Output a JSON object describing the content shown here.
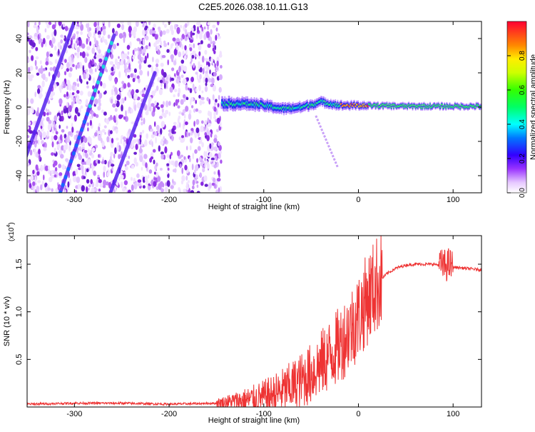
{
  "chart_data": [
    {
      "type": "heatmap",
      "title": "C2E5.2026.038.10.11.G13",
      "xlabel": "Height of straight line (km)",
      "ylabel": "Frequency (Hz)",
      "xlim": [
        -350,
        130
      ],
      "ylim": [
        -50,
        50
      ],
      "x_ticks": [
        -300,
        -200,
        -100,
        0,
        100
      ],
      "x_tick_labels": [
        "-300",
        "-200",
        "-100",
        "0",
        "100"
      ],
      "y_ticks": [
        -40,
        -20,
        0,
        20,
        40
      ],
      "y_tick_labels": [
        "-40",
        "-20",
        "0",
        "20",
        "40"
      ],
      "colorbar": {
        "label": "Normalized spectral amplitude",
        "range": [
          0,
          1
        ],
        "ticks": [
          0.0,
          0.2,
          0.4,
          0.6,
          0.8
        ],
        "tick_labels": [
          "0.0",
          "0.2",
          "0.4",
          "0.6",
          "0.8"
        ]
      },
      "features": {
        "noise_region_x": [
          -350,
          -145
        ],
        "main_line": [
          [
            -145,
            2
          ],
          [
            -120,
            2
          ],
          [
            -100,
            1
          ],
          [
            -80,
            -1
          ],
          [
            -60,
            0
          ],
          [
            -40,
            3
          ],
          [
            -20,
            1
          ],
          [
            0,
            1
          ],
          [
            50,
            0.5
          ],
          [
            100,
            0.5
          ],
          [
            130,
            0.5
          ]
        ],
        "diagonal_streaks": [
          {
            "from": [
              -315,
              -50
            ],
            "to": [
              -258,
              42
            ]
          },
          {
            "from": [
              -365,
              -50
            ],
            "to": [
              -300,
              50
            ]
          },
          {
            "from": [
              -262,
              -50
            ],
            "to": [
              -215,
              20
            ]
          }
        ],
        "faint_branch": {
          "from": [
            -45,
            -5
          ],
          "to": [
            -22,
            -35
          ]
        }
      }
    },
    {
      "type": "line",
      "xlabel": "Height of straight line (km)",
      "ylabel": "SNR (10 * v/v)",
      "multiplier_label": "(x10",
      "multiplier_exp": "4",
      "multiplier_close": ")",
      "xlim": [
        -350,
        130
      ],
      "ylim": [
        0,
        1.8
      ],
      "x_ticks": [
        -300,
        -200,
        -100,
        0,
        100
      ],
      "x_tick_labels": [
        "-300",
        "-200",
        "-100",
        "0",
        "100"
      ],
      "y_ticks": [
        0.5,
        1.0,
        1.5
      ],
      "y_tick_labels": [
        "0.5",
        "1.0",
        "1.5"
      ],
      "series": [
        {
          "name": "SNR",
          "color": "#ee3333",
          "x": [
            -350,
            -300,
            -250,
            -200,
            -150,
            -130,
            -110,
            -100,
            -90,
            -80,
            -70,
            -60,
            -50,
            -40,
            -30,
            -20,
            -10,
            0,
            10,
            20,
            30,
            40,
            50,
            60,
            70,
            80,
            90,
            95,
            100,
            110,
            120,
            130
          ],
          "y": [
            0.03,
            0.04,
            0.04,
            0.03,
            0.04,
            0.06,
            0.08,
            0.1,
            0.13,
            0.17,
            0.22,
            0.28,
            0.35,
            0.45,
            0.55,
            0.65,
            0.8,
            0.95,
            1.15,
            1.3,
            1.4,
            1.46,
            1.49,
            1.5,
            1.5,
            1.5,
            1.48,
            1.5,
            1.47,
            1.46,
            1.45,
            1.44
          ]
        }
      ]
    }
  ],
  "colors": {
    "line": "#ee3333",
    "axis": "#000000",
    "background": "#ffffff"
  }
}
